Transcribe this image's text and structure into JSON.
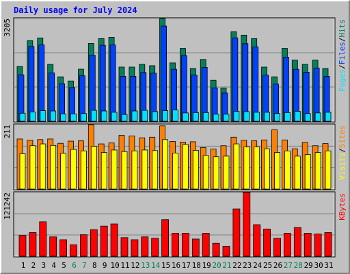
{
  "chart_data": [
    {
      "type": "bar",
      "title": "Daily usage for July 2024",
      "title_color": "#0000ff",
      "ylim": [
        0,
        3205
      ],
      "yticks": [
        3205
      ],
      "series": [
        {
          "name": "Hits",
          "color": "#00805c",
          "values": [
            1711,
            2512,
            2599,
            1776,
            1386,
            1256,
            1624,
            2425,
            2577,
            2620,
            1689,
            1689,
            1776,
            1733,
            3205,
            1819,
            2274,
            1646,
            1927,
            1278,
            1039,
            2794,
            2685,
            2577,
            1689,
            1386,
            2274,
            1906,
            1776,
            1906,
            1646
          ]
        },
        {
          "name": "Files",
          "color": "#0040ff",
          "values": [
            1450,
            2330,
            2380,
            1510,
            1170,
            1050,
            1420,
            2060,
            2370,
            2380,
            1400,
            1400,
            1520,
            1500,
            2970,
            1620,
            2050,
            1440,
            1680,
            1040,
            880,
            2600,
            2420,
            2320,
            1440,
            1160,
            2000,
            1620,
            1530,
            1660,
            1400
          ]
        },
        {
          "name": "Pages",
          "color": "#00e0ff",
          "values": [
            250,
            290,
            330,
            320,
            230,
            230,
            240,
            340,
            320,
            280,
            210,
            320,
            340,
            300,
            330,
            350,
            260,
            270,
            270,
            220,
            220,
            310,
            300,
            280,
            280,
            240,
            270,
            310,
            240,
            260,
            280
          ]
        }
      ]
    },
    {
      "type": "bar",
      "ylim": [
        0,
        211
      ],
      "yticks": [
        211
      ],
      "series": [
        {
          "name": "Sites",
          "color": "#ff8000",
          "values": [
            164,
            160,
            162,
            164,
            150,
            157,
            158,
            211,
            148,
            151,
            176,
            174,
            168,
            170,
            207,
            156,
            154,
            155,
            136,
            131,
            142,
            170,
            160,
            158,
            161,
            194,
            161,
            132,
            153,
            142,
            149
          ]
        },
        {
          "name": "Visits",
          "color": "#ffff00",
          "values": [
            116,
            142,
            148,
            143,
            117,
            130,
            125,
            140,
            120,
            128,
            123,
            125,
            128,
            126,
            162,
            118,
            146,
            127,
            110,
            106,
            108,
            148,
            138,
            138,
            132,
            120,
            125,
            108,
            113,
            120,
            125
          ]
        }
      ]
    },
    {
      "type": "bar",
      "ylim": [
        0,
        121242
      ],
      "yticks": [
        121242
      ],
      "categories": [
        "1",
        "2",
        "3",
        "4",
        "5",
        "6",
        "7",
        "8",
        "9",
        "10",
        "11",
        "12",
        "13",
        "14",
        "15",
        "16",
        "17",
        "18",
        "19",
        "20",
        "21",
        "22",
        "23",
        "24",
        "25",
        "26",
        "27",
        "28",
        "29",
        "30",
        "31"
      ],
      "highlight_categories": [
        6,
        7,
        13,
        14,
        20,
        21,
        27,
        28
      ],
      "highlight_color": "#00805c",
      "series": [
        {
          "name": "KBytes",
          "color": "#ff0000",
          "values": [
            39500,
            44950,
            65390,
            36780,
            31330,
            21800,
            40870,
            50400,
            57210,
            61300,
            35420,
            31330,
            36780,
            34060,
            69480,
            43590,
            43590,
            32690,
            43590,
            24520,
            19070,
            89910,
            121242,
            59940,
            51770,
            34060,
            43590,
            54490,
            43590,
            42230,
            44950
          ]
        }
      ]
    }
  ],
  "separator": "/"
}
